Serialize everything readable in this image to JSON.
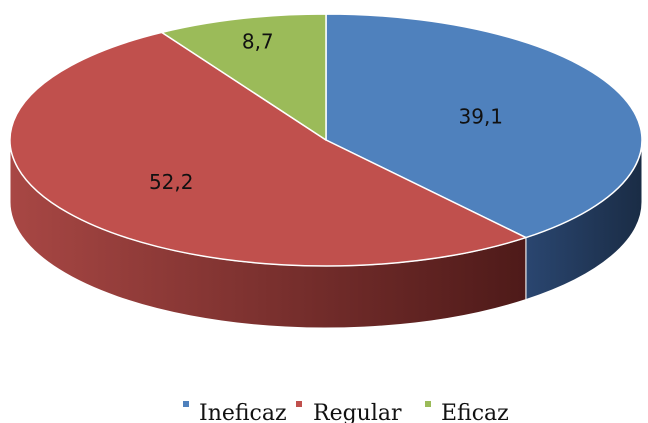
{
  "chart_data": {
    "type": "pie",
    "style": "3d",
    "categories": [
      "Ineficaz",
      "Regular",
      "Eficaz"
    ],
    "values": [
      39.1,
      52.2,
      8.7
    ],
    "data_labels": [
      "39,1",
      "52,2",
      "8,7"
    ],
    "colors": {
      "Ineficaz": "#4F81BD",
      "Regular": "#C0504D",
      "Eficaz": "#9BBB59"
    },
    "side_colors": {
      "Ineficaz": "#1F3552",
      "Regular": "#6E2422",
      "Eficaz": "#5A7031"
    },
    "legend": {
      "position": "bottom",
      "items": [
        "Ineficaz",
        "Regular",
        "Eficaz"
      ]
    }
  }
}
